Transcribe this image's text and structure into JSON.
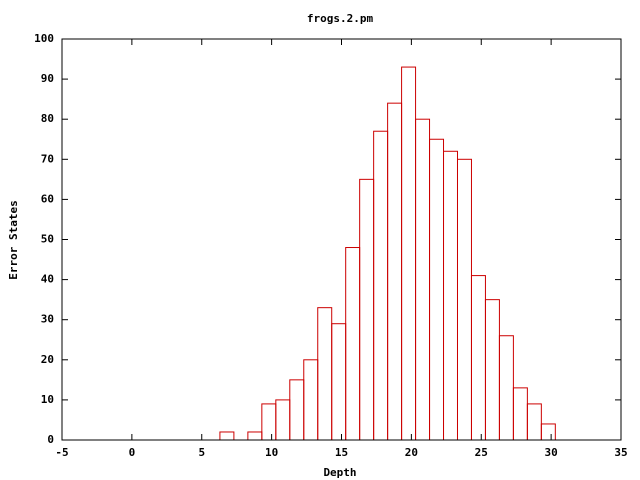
{
  "chart_data": {
    "type": "histogram",
    "title": "frogs.2.pm",
    "xlabel": "Depth",
    "ylabel": "Error States",
    "bins": [
      6.3,
      7.3,
      8.3,
      9.3,
      10.3,
      11.3,
      12.3,
      13.3,
      14.3,
      15.3,
      16.3,
      17.3,
      18.3,
      19.3,
      20.3,
      21.3,
      22.3,
      23.3,
      24.3,
      25.3,
      26.3,
      27.3,
      28.3,
      29.3,
      30.3
    ],
    "values": [
      2,
      0,
      2,
      9,
      10,
      15,
      20,
      33,
      29,
      48,
      65,
      77,
      84,
      93,
      80,
      75,
      72,
      70,
      41,
      35,
      26,
      13,
      9,
      4
    ],
    "color": "#cc0000",
    "xlim": [
      -5,
      35
    ],
    "xticks": [
      -5,
      0,
      5,
      10,
      15,
      20,
      25,
      30,
      35
    ],
    "ylim": [
      0,
      100
    ],
    "yticks": [
      0,
      10,
      20,
      30,
      40,
      50,
      60,
      70,
      80,
      90,
      100
    ]
  }
}
